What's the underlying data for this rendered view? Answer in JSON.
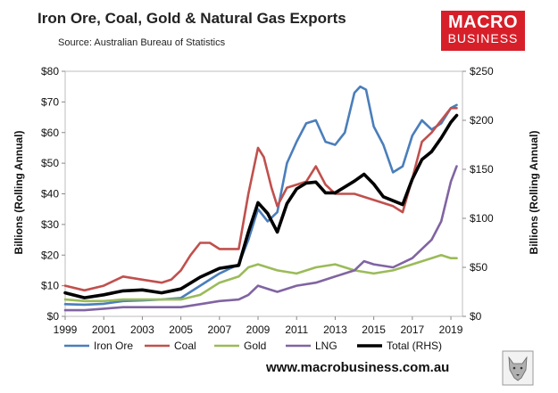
{
  "title": "Iron Ore, Coal, Gold & Natural Gas Exports",
  "subtitle": "Source: Australian Bureau of Statistics",
  "logo": {
    "line1": "MACRO",
    "line2": "BUSINESS",
    "color": "#d71f2a"
  },
  "website": "www.macrobusiness.com.au",
  "chart_data": {
    "type": "line",
    "xlabel": "",
    "ylabel": "Billions (Rolling Annual)",
    "ylabel_right": "Billions (Rolling Annual)",
    "xlim": [
      1999,
      2019.6
    ],
    "ylim": [
      0,
      80
    ],
    "ylim_right": [
      0,
      250
    ],
    "x_ticks": [
      "1999",
      "2001",
      "2003",
      "2005",
      "2007",
      "2009",
      "2011",
      "2013",
      "2015",
      "2017",
      "2019"
    ],
    "y_ticks": [
      "$0",
      "$10",
      "$20",
      "$30",
      "$40",
      "$50",
      "$60",
      "$70",
      "$80"
    ],
    "y_ticks_right": [
      "$0",
      "$50",
      "$100",
      "$150",
      "$200",
      "$250"
    ],
    "legend_position": "bottom",
    "series": [
      {
        "name": "Iron Ore",
        "axis": "left",
        "color": "#4a7ebb",
        "points": [
          [
            1999,
            4
          ],
          [
            2000,
            3.8
          ],
          [
            2001,
            4.1
          ],
          [
            2002,
            5
          ],
          [
            2003,
            5.2
          ],
          [
            2004,
            5.5
          ],
          [
            2005,
            6
          ],
          [
            2006,
            10
          ],
          [
            2007,
            14
          ],
          [
            2008,
            17
          ],
          [
            2008.5,
            25
          ],
          [
            2009,
            35
          ],
          [
            2009.5,
            31
          ],
          [
            2010,
            34
          ],
          [
            2010.5,
            50
          ],
          [
            2011,
            57
          ],
          [
            2011.5,
            63
          ],
          [
            2012,
            64
          ],
          [
            2012.5,
            57
          ],
          [
            2013,
            56
          ],
          [
            2013.5,
            60
          ],
          [
            2014,
            73
          ],
          [
            2014.3,
            75
          ],
          [
            2014.6,
            74
          ],
          [
            2015,
            62
          ],
          [
            2015.5,
            56
          ],
          [
            2016,
            47
          ],
          [
            2016.5,
            49
          ],
          [
            2017,
            59
          ],
          [
            2017.5,
            64
          ],
          [
            2018,
            61
          ],
          [
            2018.5,
            63
          ],
          [
            2019,
            68
          ],
          [
            2019.3,
            69
          ]
        ]
      },
      {
        "name": "Coal",
        "axis": "left",
        "color": "#c0504d",
        "points": [
          [
            1999,
            10
          ],
          [
            2000,
            8.5
          ],
          [
            2001,
            10
          ],
          [
            2002,
            13
          ],
          [
            2003,
            12
          ],
          [
            2004,
            11
          ],
          [
            2004.5,
            12
          ],
          [
            2005,
            15
          ],
          [
            2005.5,
            20
          ],
          [
            2006,
            24
          ],
          [
            2006.5,
            24
          ],
          [
            2007,
            22
          ],
          [
            2008,
            22
          ],
          [
            2008.5,
            40
          ],
          [
            2009,
            55
          ],
          [
            2009.3,
            52
          ],
          [
            2009.7,
            42
          ],
          [
            2010,
            36
          ],
          [
            2010.5,
            42
          ],
          [
            2011,
            43
          ],
          [
            2011.5,
            44
          ],
          [
            2012,
            49
          ],
          [
            2012.5,
            43
          ],
          [
            2013,
            40
          ],
          [
            2014,
            40
          ],
          [
            2015,
            38
          ],
          [
            2016,
            36
          ],
          [
            2016.5,
            34
          ],
          [
            2017,
            45
          ],
          [
            2017.5,
            57
          ],
          [
            2018,
            60
          ],
          [
            2018.5,
            64
          ],
          [
            2019,
            68
          ],
          [
            2019.3,
            68
          ]
        ]
      },
      {
        "name": "Gold",
        "axis": "left",
        "color": "#9bbb59",
        "points": [
          [
            1999,
            5.5
          ],
          [
            2000,
            5
          ],
          [
            2001,
            5
          ],
          [
            2002,
            5.5
          ],
          [
            2003,
            5.5
          ],
          [
            2004,
            5.5
          ],
          [
            2005,
            5.5
          ],
          [
            2006,
            7
          ],
          [
            2007,
            11
          ],
          [
            2008,
            13
          ],
          [
            2008.5,
            16
          ],
          [
            2009,
            17
          ],
          [
            2010,
            15
          ],
          [
            2011,
            14
          ],
          [
            2012,
            16
          ],
          [
            2013,
            17
          ],
          [
            2014,
            15
          ],
          [
            2015,
            14
          ],
          [
            2016,
            15
          ],
          [
            2017,
            17
          ],
          [
            2018,
            19
          ],
          [
            2018.5,
            20
          ],
          [
            2019,
            19
          ],
          [
            2019.3,
            19
          ]
        ]
      },
      {
        "name": "LNG",
        "axis": "left",
        "color": "#8064a2",
        "points": [
          [
            1999,
            2
          ],
          [
            2000,
            2
          ],
          [
            2001,
            2.5
          ],
          [
            2002,
            3
          ],
          [
            2003,
            3
          ],
          [
            2004,
            3
          ],
          [
            2005,
            3
          ],
          [
            2006,
            4
          ],
          [
            2007,
            5
          ],
          [
            2008,
            5.5
          ],
          [
            2008.5,
            7
          ],
          [
            2009,
            10
          ],
          [
            2009.5,
            9
          ],
          [
            2010,
            8
          ],
          [
            2011,
            10
          ],
          [
            2012,
            11
          ],
          [
            2013,
            13
          ],
          [
            2014,
            15
          ],
          [
            2014.5,
            18
          ],
          [
            2015,
            17
          ],
          [
            2016,
            16
          ],
          [
            2017,
            19
          ],
          [
            2018,
            25
          ],
          [
            2018.5,
            31
          ],
          [
            2019,
            44
          ],
          [
            2019.3,
            49
          ]
        ]
      },
      {
        "name": "Total (RHS)",
        "axis": "right",
        "color": "#000000",
        "points": [
          [
            1999,
            24
          ],
          [
            2000,
            19
          ],
          [
            2001,
            22
          ],
          [
            2002,
            26
          ],
          [
            2003,
            27
          ],
          [
            2004,
            24
          ],
          [
            2005,
            28
          ],
          [
            2006,
            40
          ],
          [
            2007,
            49
          ],
          [
            2008,
            52
          ],
          [
            2008.5,
            86
          ],
          [
            2009,
            116
          ],
          [
            2009.5,
            105
          ],
          [
            2010,
            86
          ],
          [
            2010.5,
            115
          ],
          [
            2011,
            130
          ],
          [
            2011.5,
            136
          ],
          [
            2012,
            137
          ],
          [
            2012.5,
            126
          ],
          [
            2013,
            126
          ],
          [
            2014,
            138
          ],
          [
            2014.5,
            145
          ],
          [
            2015,
            135
          ],
          [
            2015.5,
            122
          ],
          [
            2016,
            118
          ],
          [
            2016.5,
            114
          ],
          [
            2017,
            140
          ],
          [
            2017.5,
            160
          ],
          [
            2018,
            168
          ],
          [
            2018.5,
            182
          ],
          [
            2019,
            198
          ],
          [
            2019.3,
            205
          ]
        ]
      }
    ]
  }
}
